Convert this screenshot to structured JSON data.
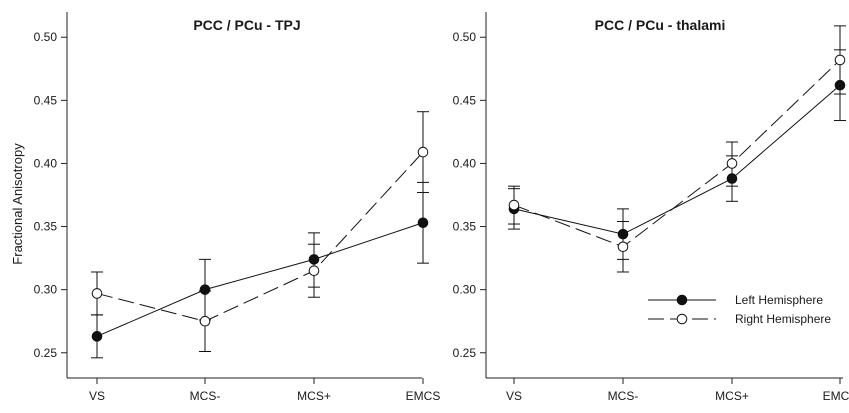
{
  "figure": {
    "ylabel": "Fractional Anisotropy",
    "legend": {
      "placement": "bottom-right of right panel",
      "entries": [
        {
          "label": "Left Hemisphere",
          "marker": "filled-circle",
          "line": "solid"
        },
        {
          "label": "Right Hemisphere",
          "marker": "open-circle",
          "line": "dashed"
        }
      ]
    }
  },
  "chart_data": [
    {
      "type": "line",
      "title": "PCC / PCu - TPJ",
      "categories": [
        "VS",
        "MCS-",
        "MCS+",
        "EMCS"
      ],
      "ylim": [
        0.23,
        0.52
      ],
      "yticks": [
        0.25,
        0.3,
        0.35,
        0.4,
        0.45,
        0.5
      ],
      "ytick_labels": [
        "0.25",
        "0.30",
        "0.35",
        "0.40",
        "0.45",
        "0.50"
      ],
      "ylabel": "Fractional Anisotropy",
      "grid": false,
      "series": [
        {
          "name": "Left Hemisphere",
          "marker": "filled-circle",
          "line": "solid",
          "values": [
            0.263,
            0.3,
            0.324,
            0.353
          ],
          "err_low": [
            0.246,
            0.276,
            0.302,
            0.321
          ],
          "err_high": [
            0.28,
            0.324,
            0.345,
            0.385
          ]
        },
        {
          "name": "Right Hemisphere",
          "marker": "open-circle",
          "line": "dashed",
          "values": [
            0.297,
            0.275,
            0.315,
            0.409
          ],
          "err_low": [
            0.28,
            0.251,
            0.294,
            0.377
          ],
          "err_high": [
            0.314,
            0.299,
            0.336,
            0.441
          ]
        }
      ]
    },
    {
      "type": "line",
      "title": "PCC / PCu - thalami",
      "categories": [
        "VS",
        "MCS-",
        "MCS+",
        "EMCS"
      ],
      "ylim": [
        0.23,
        0.52
      ],
      "yticks": [
        0.25,
        0.3,
        0.35,
        0.4,
        0.45,
        0.5
      ],
      "ytick_labels": [
        "0.25",
        "0.30",
        "0.35",
        "0.40",
        "0.45",
        "0.50"
      ],
      "grid": false,
      "series": [
        {
          "name": "Left Hemisphere",
          "marker": "filled-circle",
          "line": "solid",
          "values": [
            0.364,
            0.344,
            0.388,
            0.462
          ],
          "err_low": [
            0.348,
            0.324,
            0.37,
            0.434
          ],
          "err_high": [
            0.38,
            0.364,
            0.406,
            0.49
          ]
        },
        {
          "name": "Right Hemisphere",
          "marker": "open-circle",
          "line": "dashed",
          "values": [
            0.367,
            0.334,
            0.4,
            0.482
          ],
          "err_low": [
            0.352,
            0.314,
            0.382,
            0.455
          ],
          "err_high": [
            0.382,
            0.354,
            0.417,
            0.509
          ]
        }
      ]
    }
  ]
}
